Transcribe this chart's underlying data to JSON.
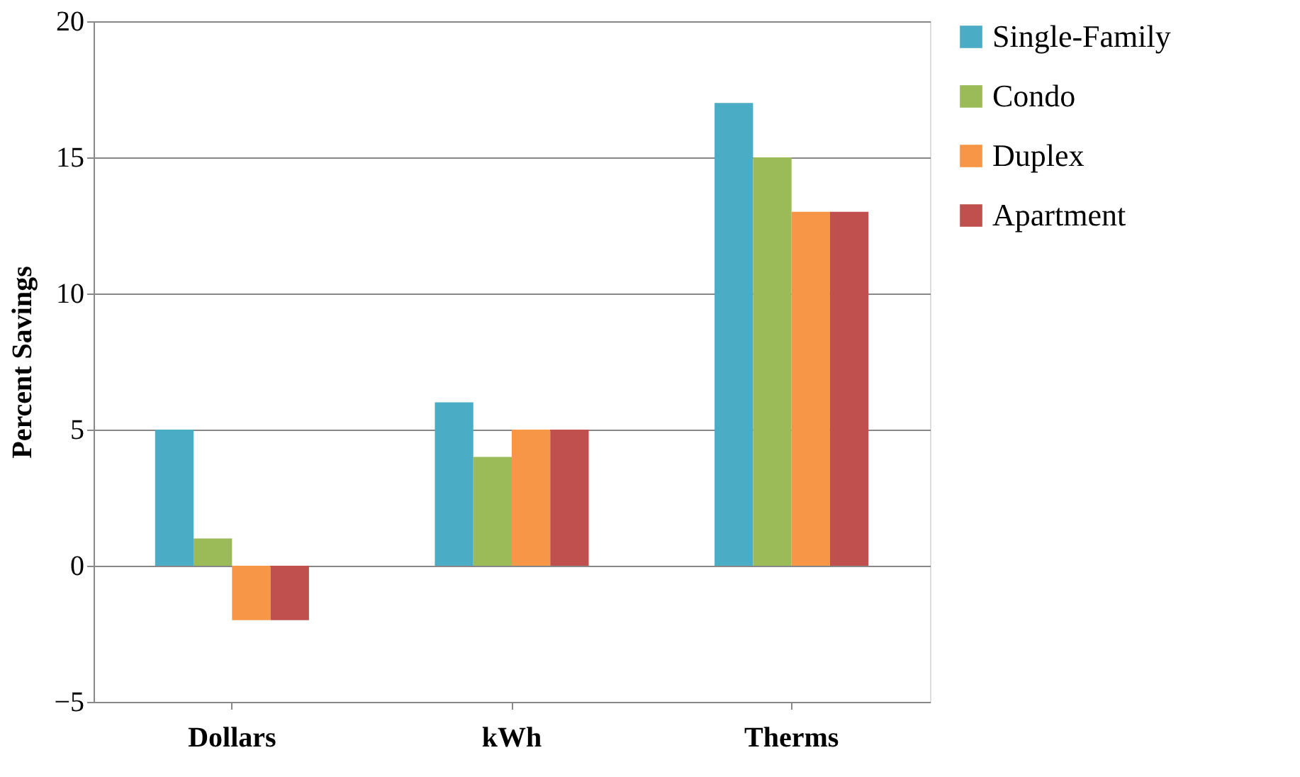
{
  "chart_data": {
    "type": "bar",
    "ylabel": "Percent Savings",
    "categories": [
      "Dollars",
      "kWh",
      "Therms"
    ],
    "series": [
      {
        "name": "Single-Family",
        "color": "#4bacc6",
        "values": [
          5,
          6,
          17
        ]
      },
      {
        "name": "Condo",
        "color": "#9bbb59",
        "values": [
          1,
          4,
          15
        ]
      },
      {
        "name": "Duplex",
        "color": "#f79646",
        "values": [
          -2,
          5,
          13
        ]
      },
      {
        "name": "Apartment",
        "color": "#c0504d",
        "values": [
          -2,
          5,
          13
        ]
      }
    ],
    "ylim": [
      -5,
      20
    ],
    "yticks": [
      -5,
      0,
      5,
      10,
      15,
      20
    ],
    "grid": "y",
    "legend": "right"
  }
}
